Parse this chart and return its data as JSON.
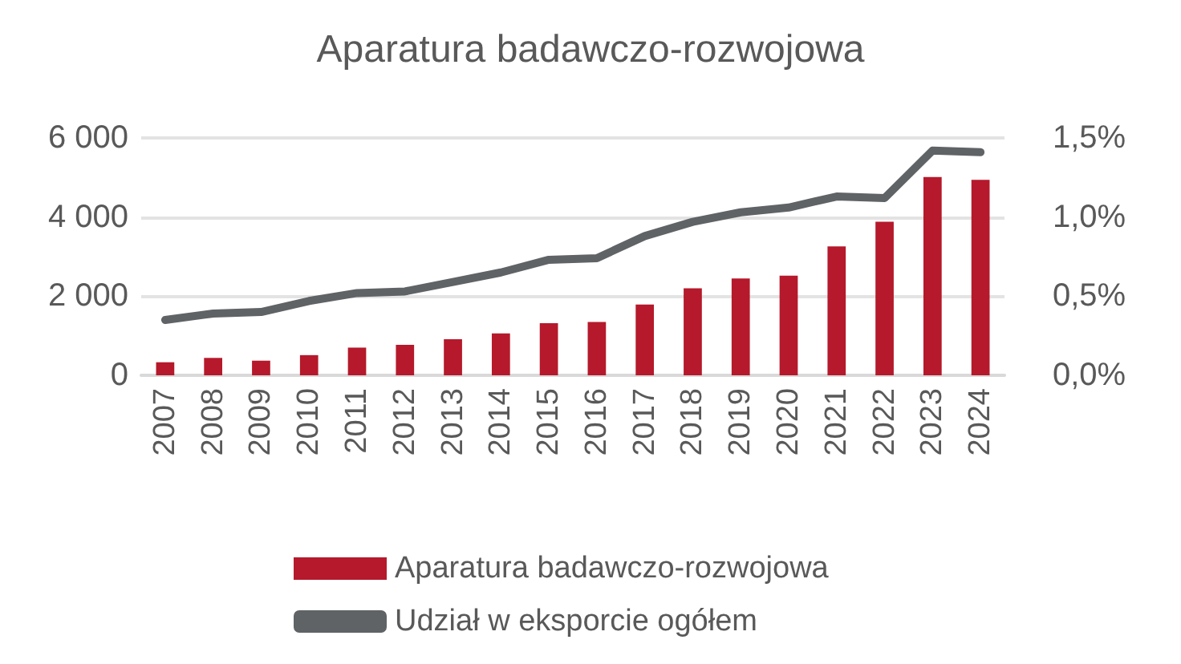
{
  "chart_data": {
    "type": "bar",
    "title": "Aparatura badawczo-rozwojowa",
    "categories": [
      "2007",
      "2008",
      "2009",
      "2010",
      "2011",
      "2012",
      "2013",
      "2014",
      "2015",
      "2016",
      "2017",
      "2018",
      "2019",
      "2020",
      "2021",
      "2022",
      "2023",
      "2024"
    ],
    "series": [
      {
        "name": "Aparatura badawczo-rozwojowa",
        "color": "#b5192b",
        "values": [
          330,
          440,
          370,
          510,
          700,
          770,
          910,
          1060,
          1320,
          1350,
          1790,
          2200,
          2450,
          2520,
          3260,
          3880,
          5010,
          4940
        ]
      },
      {
        "name": "Udział w eksporcie ogółem",
        "type": "line",
        "axis": "y2",
        "color": "#5f6366",
        "values": [
          0.35,
          0.39,
          0.4,
          0.47,
          0.52,
          0.53,
          0.59,
          0.65,
          0.73,
          0.74,
          0.88,
          0.97,
          1.03,
          1.06,
          1.13,
          1.12,
          1.42,
          1.41
        ]
      }
    ],
    "ylim": [
      0,
      6000
    ],
    "yticks": [
      {
        "value": 0,
        "label": "0"
      },
      {
        "value": 2000,
        "label": "2 000"
      },
      {
        "value": 4000,
        "label": "4 000"
      },
      {
        "value": 6000,
        "label": "6 000"
      }
    ],
    "y2lim": [
      0,
      1.5
    ],
    "y2ticks": [
      {
        "value": 0,
        "label": "0,0%"
      },
      {
        "value": 0.5,
        "label": "0,5%"
      },
      {
        "value": 1,
        "label": "1,0%"
      },
      {
        "value": 1.5,
        "label": "1,5%"
      }
    ],
    "grid": "y",
    "legend": "bottom",
    "marker": "none",
    "line_style": "solid"
  }
}
